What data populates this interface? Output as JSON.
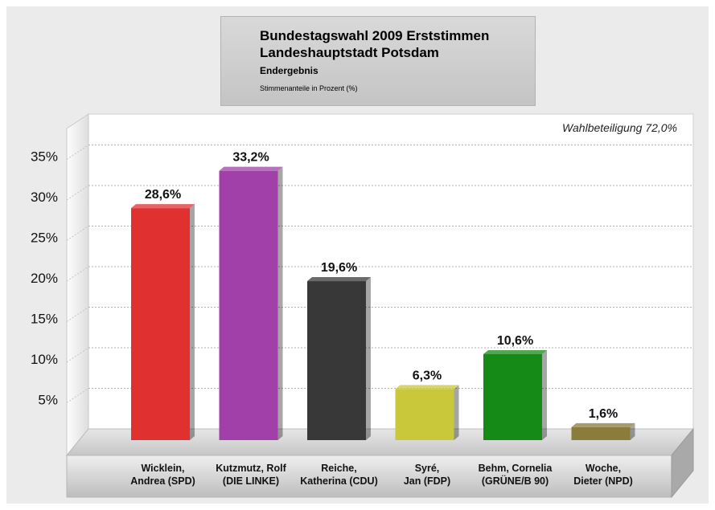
{
  "header": {
    "title_line1": "Bundestagswahl 2009 Erststimmen",
    "title_line2": "Landeshauptstadt Potsdam",
    "subtitle": "Endergebnis",
    "note": "Stimmenanteile in Prozent (%)"
  },
  "turnout_label": "Wahlbeteiligung 72,0%",
  "chart_data": {
    "type": "bar",
    "categories": [
      [
        "Wicklein,",
        "Andrea (SPD)"
      ],
      [
        "Kutzmutz, Rolf",
        "(DIE LINKE)"
      ],
      [
        "Reiche,",
        "Katherina (CDU)"
      ],
      [
        "Syré,",
        "Jan (FDP)"
      ],
      [
        "Behm, Cornelia",
        "(GRÜNE/B 90)"
      ],
      [
        "Woche,",
        "Dieter (NPD)"
      ]
    ],
    "values": [
      28.6,
      33.2,
      19.6,
      6.3,
      10.6,
      1.6
    ],
    "value_labels": [
      "28,6%",
      "33,2%",
      "19,6%",
      "6,3%",
      "10,6%",
      "1,6%"
    ],
    "colors": [
      "#e03030",
      "#a040a8",
      "#383838",
      "#c8c83a",
      "#168a16",
      "#8a7c3a"
    ],
    "ytick_values": [
      5,
      10,
      15,
      20,
      25,
      30,
      35
    ],
    "ytick_labels": [
      "5%",
      "10%",
      "15%",
      "20%",
      "25%",
      "30%",
      "35%"
    ],
    "ylim": [
      0,
      40
    ],
    "grid": true
  }
}
